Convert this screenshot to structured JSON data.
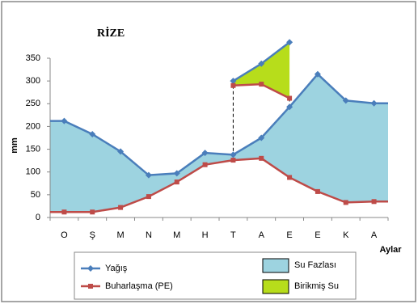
{
  "chart_data": {
    "type": "line",
    "title": "RİZE",
    "y_label": "mm",
    "x_label": "Aylar",
    "categories": [
      "O",
      "Ş",
      "M",
      "N",
      "M",
      "H",
      "T",
      "A",
      "E",
      "E",
      "K",
      "A"
    ],
    "series": [
      {
        "name": "Yağış",
        "color": "#4a7ebb",
        "values": [
          212,
          183,
          145,
          93,
          97,
          142,
          138,
          175,
          243,
          315,
          257,
          251
        ]
      },
      {
        "name": "Buharlaşma (PE)",
        "color": "#be4b48",
        "values": [
          12,
          12,
          22,
          46,
          78,
          116,
          126,
          130,
          88,
          57,
          33,
          35
        ]
      }
    ],
    "areas": [
      {
        "name": "Su Fazlası",
        "color": "#9dd3e0"
      },
      {
        "name": "Birikmiş Su",
        "color": "#b7dd1b",
        "upper": [
          null,
          null,
          null,
          null,
          null,
          null,
          300,
          338,
          385,
          null,
          null,
          null
        ],
        "lower": [
          null,
          null,
          null,
          null,
          null,
          null,
          290,
          293,
          262,
          null,
          null,
          null
        ]
      }
    ],
    "ylim": [
      0,
      350
    ],
    "yticks": [
      0,
      50,
      100,
      150,
      200,
      250,
      300,
      350
    ],
    "grid": false
  }
}
